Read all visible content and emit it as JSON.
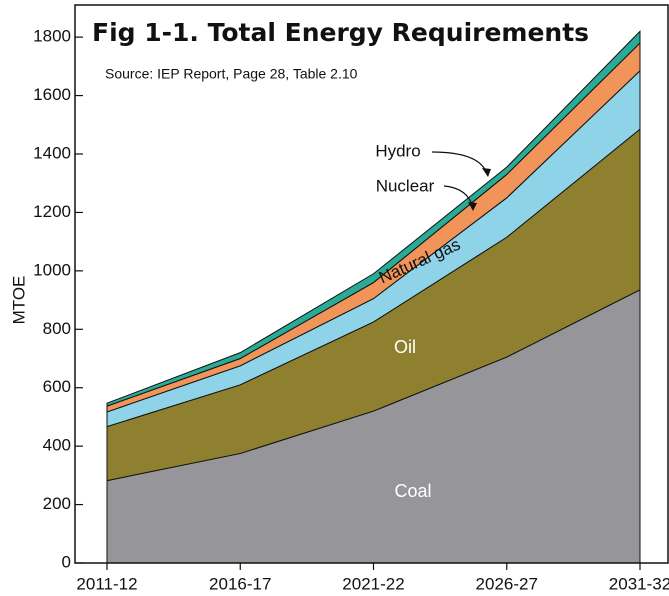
{
  "chart_data": {
    "type": "stacked_area",
    "title": "Fig 1-1. Total Energy Requirements",
    "subtitle": "Source: IEP Report, Page 28, Table 2.10",
    "y_label": "MTOE",
    "categories": [
      "2011-12",
      "2016-17",
      "2021-22",
      "2026-27",
      "2031-32"
    ],
    "series": [
      {
        "name": "Coal",
        "color": "#96969a",
        "values": [
          282,
          375,
          520,
          705,
          935
        ]
      },
      {
        "name": "Oil",
        "color": "#8f8030",
        "values": [
          185,
          235,
          305,
          410,
          550
        ]
      },
      {
        "name": "Natural gas",
        "color": "#8fd3e8",
        "values": [
          50,
          65,
          80,
          135,
          200
        ]
      },
      {
        "name": "Nuclear",
        "color": "#f0945a",
        "values": [
          20,
          25,
          55,
          80,
          95
        ]
      },
      {
        "name": "Hydro",
        "color": "#2aab98",
        "values": [
          10,
          20,
          30,
          25,
          40
        ]
      }
    ],
    "ylim": [
      0,
      1910
    ],
    "yticks": [
      0,
      200,
      400,
      600,
      800,
      1000,
      1200,
      1400,
      1600,
      1800
    ]
  }
}
